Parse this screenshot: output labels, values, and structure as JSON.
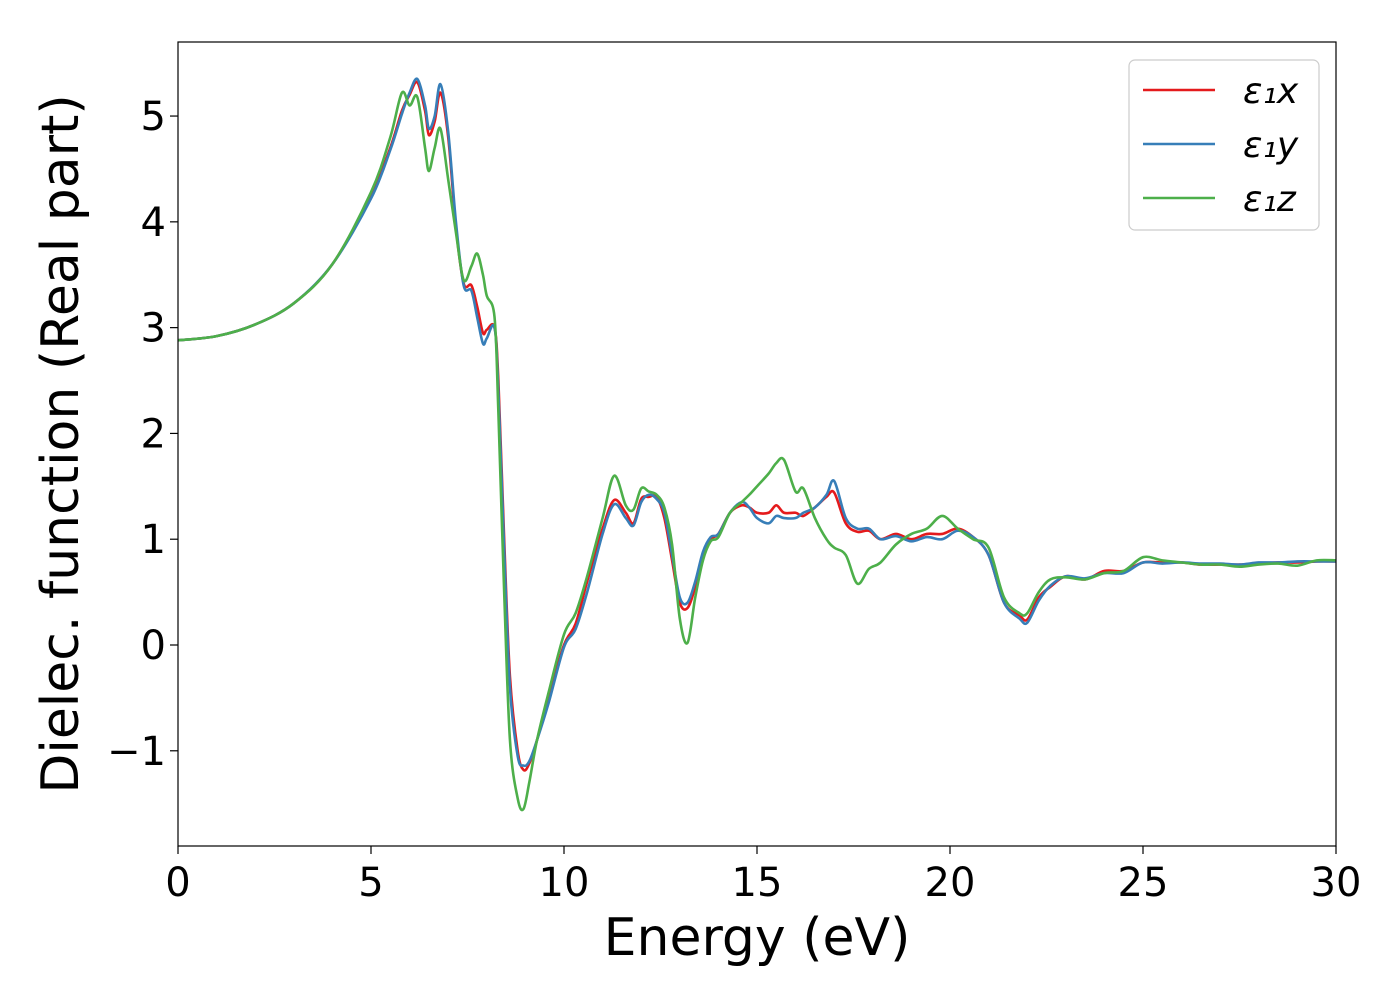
{
  "chart_data": {
    "type": "line",
    "title": "",
    "xlabel": "Energy (eV)",
    "ylabel": "Dielec. function (Real part)",
    "xlim": [
      0,
      30
    ],
    "ylim": [
      -1.9,
      5.7
    ],
    "xticks": [
      0,
      5,
      10,
      15,
      20,
      25,
      30
    ],
    "yticks": [
      -1,
      0,
      1,
      2,
      3,
      4,
      5
    ],
    "xtick_labels": [
      "0",
      "5",
      "10",
      "15",
      "20",
      "25",
      "30"
    ],
    "ytick_labels": [
      "−1",
      "0",
      "1",
      "2",
      "3",
      "4",
      "5"
    ],
    "grid": false,
    "legend_position": "top-right",
    "series": [
      {
        "name": "ε₁x",
        "color": "#e41a1c",
        "x": [
          0,
          1,
          2,
          3,
          4,
          5,
          5.5,
          5.8,
          6.0,
          6.2,
          6.4,
          6.5,
          6.65,
          6.8,
          7.0,
          7.2,
          7.4,
          7.6,
          7.75,
          7.9,
          8.0,
          8.2,
          8.3,
          8.45,
          8.6,
          8.8,
          8.95,
          9.1,
          9.3,
          9.6,
          10.0,
          10.3,
          10.6,
          11.0,
          11.3,
          11.6,
          11.8,
          12.0,
          12.2,
          12.4,
          12.6,
          12.8,
          13.0,
          13.2,
          13.4,
          13.6,
          13.8,
          14.0,
          14.3,
          14.6,
          14.8,
          15.0,
          15.3,
          15.5,
          15.7,
          16.0,
          16.2,
          16.5,
          16.8,
          17.0,
          17.3,
          17.6,
          17.9,
          18.2,
          18.6,
          19.0,
          19.4,
          19.8,
          20.2,
          20.6,
          21.0,
          21.4,
          21.8,
          22.0,
          22.3,
          22.6,
          23.0,
          23.5,
          24.0,
          24.5,
          25.0,
          25.5,
          26.0,
          26.5,
          27.0,
          27.5,
          28.0,
          28.5,
          29.0,
          29.5,
          30.0
        ],
        "y": [
          2.88,
          2.92,
          3.03,
          3.23,
          3.6,
          4.25,
          4.7,
          5.05,
          5.2,
          5.32,
          5.05,
          4.82,
          4.95,
          5.22,
          4.8,
          3.95,
          3.42,
          3.4,
          3.2,
          2.95,
          2.98,
          3.0,
          2.5,
          1.0,
          -0.3,
          -1.0,
          -1.18,
          -1.12,
          -0.9,
          -0.5,
          0.0,
          0.2,
          0.6,
          1.1,
          1.37,
          1.25,
          1.15,
          1.38,
          1.4,
          1.4,
          1.2,
          0.8,
          0.4,
          0.35,
          0.55,
          0.85,
          1.0,
          1.05,
          1.25,
          1.32,
          1.3,
          1.25,
          1.25,
          1.32,
          1.25,
          1.25,
          1.22,
          1.3,
          1.4,
          1.44,
          1.15,
          1.07,
          1.08,
          1.0,
          1.05,
          1.0,
          1.05,
          1.05,
          1.1,
          1.02,
          0.85,
          0.4,
          0.28,
          0.24,
          0.45,
          0.55,
          0.65,
          0.62,
          0.7,
          0.7,
          0.78,
          0.78,
          0.78,
          0.76,
          0.76,
          0.76,
          0.77,
          0.78,
          0.78,
          0.79,
          0.79
        ]
      },
      {
        "name": "ε₁y",
        "color": "#377eb8",
        "x": [
          0,
          1,
          2,
          3,
          4,
          5,
          5.5,
          5.8,
          6.0,
          6.2,
          6.4,
          6.5,
          6.65,
          6.8,
          7.0,
          7.2,
          7.4,
          7.6,
          7.75,
          7.9,
          8.0,
          8.2,
          8.3,
          8.45,
          8.6,
          8.8,
          8.95,
          9.1,
          9.3,
          9.6,
          10.0,
          10.3,
          10.6,
          11.0,
          11.3,
          11.6,
          11.8,
          12.0,
          12.2,
          12.4,
          12.6,
          12.8,
          13.0,
          13.2,
          13.4,
          13.6,
          13.8,
          14.0,
          14.3,
          14.6,
          14.8,
          15.0,
          15.3,
          15.5,
          15.7,
          16.0,
          16.2,
          16.5,
          16.8,
          17.0,
          17.3,
          17.6,
          17.9,
          18.2,
          18.6,
          19.0,
          19.4,
          19.8,
          20.2,
          20.6,
          21.0,
          21.4,
          21.8,
          22.0,
          22.3,
          22.6,
          23.0,
          23.5,
          24.0,
          24.5,
          25.0,
          25.5,
          26.0,
          26.5,
          27.0,
          27.5,
          28.0,
          28.5,
          29.0,
          29.5,
          30.0
        ],
        "y": [
          2.88,
          2.92,
          3.03,
          3.23,
          3.6,
          4.22,
          4.68,
          5.02,
          5.22,
          5.35,
          5.1,
          4.88,
          5.0,
          5.3,
          4.85,
          4.0,
          3.4,
          3.35,
          3.1,
          2.85,
          2.9,
          3.0,
          2.4,
          0.9,
          -0.4,
          -1.05,
          -1.14,
          -1.1,
          -0.9,
          -0.55,
          -0.02,
          0.15,
          0.5,
          1.05,
          1.33,
          1.2,
          1.13,
          1.35,
          1.42,
          1.38,
          1.25,
          0.85,
          0.45,
          0.4,
          0.6,
          0.88,
          1.02,
          1.05,
          1.25,
          1.35,
          1.3,
          1.2,
          1.15,
          1.22,
          1.2,
          1.2,
          1.25,
          1.3,
          1.42,
          1.55,
          1.2,
          1.1,
          1.1,
          1.0,
          1.03,
          0.98,
          1.02,
          1.0,
          1.08,
          1.02,
          0.85,
          0.4,
          0.25,
          0.21,
          0.42,
          0.56,
          0.65,
          0.63,
          0.68,
          0.68,
          0.78,
          0.77,
          0.78,
          0.77,
          0.77,
          0.76,
          0.78,
          0.78,
          0.79,
          0.79,
          0.79
        ]
      },
      {
        "name": "ε₁z",
        "color": "#4daf4a",
        "x": [
          0,
          1,
          2,
          3,
          4,
          5,
          5.5,
          5.8,
          6.0,
          6.2,
          6.4,
          6.5,
          6.65,
          6.8,
          7.0,
          7.2,
          7.4,
          7.6,
          7.75,
          7.9,
          8.0,
          8.2,
          8.3,
          8.45,
          8.6,
          8.8,
          8.95,
          9.1,
          9.3,
          9.6,
          10.0,
          10.3,
          10.6,
          11.0,
          11.3,
          11.6,
          11.8,
          12.0,
          12.2,
          12.4,
          12.6,
          12.8,
          13.0,
          13.2,
          13.4,
          13.6,
          13.8,
          14.0,
          14.3,
          14.6,
          14.8,
          15.0,
          15.3,
          15.5,
          15.7,
          16.0,
          16.2,
          16.5,
          16.8,
          17.0,
          17.3,
          17.6,
          17.9,
          18.2,
          18.6,
          19.0,
          19.4,
          19.8,
          20.2,
          20.6,
          21.0,
          21.4,
          21.8,
          22.0,
          22.3,
          22.6,
          23.0,
          23.5,
          24.0,
          24.5,
          25.0,
          25.5,
          26.0,
          26.5,
          27.0,
          27.5,
          28.0,
          28.5,
          29.0,
          29.5,
          30.0
        ],
        "y": [
          2.88,
          2.92,
          3.03,
          3.23,
          3.6,
          4.28,
          4.8,
          5.22,
          5.1,
          5.18,
          4.7,
          4.48,
          4.7,
          4.88,
          4.4,
          3.9,
          3.45,
          3.58,
          3.7,
          3.5,
          3.3,
          3.1,
          2.2,
          0.5,
          -0.9,
          -1.45,
          -1.55,
          -1.3,
          -0.9,
          -0.45,
          0.1,
          0.3,
          0.65,
          1.2,
          1.6,
          1.32,
          1.28,
          1.48,
          1.45,
          1.42,
          1.3,
          0.95,
          0.25,
          0.02,
          0.45,
          0.8,
          0.98,
          1.02,
          1.25,
          1.35,
          1.42,
          1.5,
          1.62,
          1.72,
          1.75,
          1.45,
          1.48,
          1.2,
          1.0,
          0.92,
          0.85,
          0.58,
          0.72,
          0.78,
          0.95,
          1.05,
          1.1,
          1.22,
          1.1,
          1.0,
          0.92,
          0.45,
          0.3,
          0.3,
          0.5,
          0.62,
          0.64,
          0.62,
          0.68,
          0.7,
          0.83,
          0.8,
          0.78,
          0.76,
          0.76,
          0.74,
          0.76,
          0.77,
          0.75,
          0.8,
          0.8
        ]
      }
    ]
  }
}
